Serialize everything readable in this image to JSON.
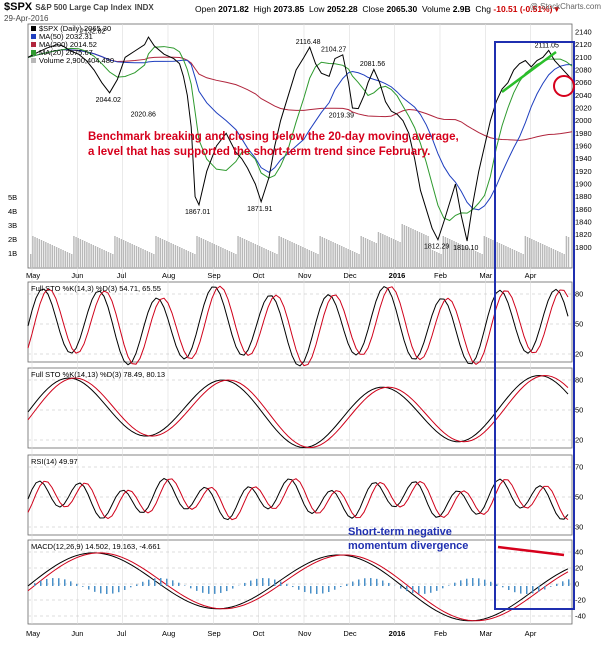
{
  "header": {
    "symbol": "$SPX",
    "name": "S&P 500 Large Cap Index",
    "exchange": "INDX",
    "date": "29-Apr-2016",
    "open_label": "Open",
    "open": "2071.82",
    "high_label": "High",
    "high": "2073.85",
    "low_label": "Low",
    "low": "2052.28",
    "close_label": "Close",
    "close": "2065.30",
    "volume_label": "Volume",
    "volume": "2.9B",
    "chg_label": "Chg",
    "chg": "-10.51 (-0.51%)",
    "watermark": "@ StockCharts.com"
  },
  "colors": {
    "price_up": "#000000",
    "price_down": "#d0021b",
    "ma50": "#1f3fbf",
    "ma200": "#b0243c",
    "ma20": "#2e9a2e",
    "volume": "#b8b8b8",
    "highlight_box": "#1f2fb0",
    "annotation": "#d6001c",
    "sto_k": "#000000",
    "sto_d": "#d0021b",
    "macd_hist": "#4a90c8"
  },
  "chart_data": [
    {
      "type": "line",
      "panel": "price",
      "legend": [
        {
          "label": "$SPX (Daily) 2065.30"
        },
        {
          "label": "MA(50) 2032.31"
        },
        {
          "label": "MA(200) 2014.52"
        },
        {
          "label": "MA(20) 2075.67"
        },
        {
          "label": "Volume 2,900,404,480"
        }
      ],
      "months": [
        "May",
        "Jun",
        "Jul",
        "Aug",
        "Sep",
        "Oct",
        "Nov",
        "Dec",
        "2016",
        "Feb",
        "Mar",
        "Apr"
      ],
      "ylim": [
        1780,
        2140
      ],
      "yticks": [
        "2140",
        "2120",
        "2100",
        "2080",
        "2060",
        "2040",
        "2020",
        "2000",
        "1980",
        "1960",
        "1940",
        "1920",
        "1900",
        "1880",
        "1860",
        "1840",
        "1820",
        "1800"
      ],
      "volume_ticks": [
        "5B",
        "4B",
        "3B",
        "2B",
        "1B"
      ],
      "series": [
        {
          "name": "$SPX",
          "x": [
            0,
            5,
            10,
            15,
            18,
            22,
            26,
            30,
            34,
            38,
            42,
            46,
            50,
            55,
            60,
            62,
            65,
            70,
            75,
            78,
            80,
            82,
            84,
            86,
            88,
            92,
            97,
            102,
            107,
            110,
            113,
            117,
            120,
            124,
            127,
            130,
            134,
            138,
            142,
            145,
            148,
            151,
            155,
            158,
            162,
            165,
            167,
            170,
            173,
            175,
            178,
            181,
            184,
            187,
            190,
            193,
            196,
            199,
            202,
            205,
            208,
            211,
            214,
            217,
            220,
            223,
            226,
            229,
            232,
            235,
            238,
            241,
            244,
            247,
            250
          ],
          "values": [
            2100,
            2108,
            2115,
            2120,
            2118,
            2110,
            2105,
            2095,
            2080,
            2060,
            2044,
            2065,
            2100,
            2110,
            2120,
            2132,
            2118,
            2105,
            2098,
            2090,
            2070,
            2040,
            1990,
            1880,
            1867,
            1920,
            1960,
            1980,
            1950,
            1940,
            1925,
            1900,
            1872,
            1910,
            1960,
            2000,
            2040,
            2080,
            2100,
            2116,
            2090,
            2075,
            2070,
            2098,
            2104,
            2060,
            2020,
            2019,
            2040,
            2060,
            2081,
            2060,
            2030,
            2015,
            2010,
            2000,
            1980,
            1940,
            1890,
            1860,
            1830,
            1812,
            1840,
            1870,
            1900,
            1850,
            1810,
            1870,
            1920,
            1960,
            2000,
            2030,
            2050,
            2060,
            2080
          ]
        },
        {
          "name": "$SPX (cont)",
          "x": [
            250,
            253,
            256,
            259,
            262,
            265,
            268,
            271,
            274,
            277,
            280
          ],
          "values": [
            2080,
            2090,
            2095,
            2085,
            2095,
            2100,
            2111,
            2095,
            2085,
            2075,
            2065
          ]
        }
      ]
    },
    {
      "type": "line",
      "panel": "full_sto_14_3",
      "label": "Full STO %K(14,3) %D(3) 54.71, 65.55",
      "yticks": [
        "80",
        "50",
        "20"
      ]
    },
    {
      "type": "line",
      "panel": "full_sto_14_13",
      "label": "Full STO %K(14,13) %D(3) 78.49, 80.13",
      "yticks": [
        "80",
        "50",
        "20"
      ]
    },
    {
      "type": "line",
      "panel": "rsi",
      "label": "RSI(14) 49.97",
      "yticks": [
        "70",
        "50",
        "30"
      ]
    },
    {
      "type": "line",
      "panel": "macd",
      "label": "MACD(12,26,9) 14.502, 19.163, -4.661",
      "yticks": [
        "40",
        "20",
        "0",
        "-20",
        "-40"
      ]
    }
  ],
  "price_marks": [
    {
      "text": "2132.82"
    },
    {
      "text": "2044.02"
    },
    {
      "text": "2020.86"
    },
    {
      "text": "1867.01"
    },
    {
      "text": "1871.91"
    },
    {
      "text": "2116.48"
    },
    {
      "text": "2019.39"
    },
    {
      "text": "2104.27"
    },
    {
      "text": "2081.56"
    },
    {
      "text": "1812.29"
    },
    {
      "text": "1810.10"
    },
    {
      "text": "2111.05"
    }
  ],
  "annotations": {
    "main_line1": "Benchmark breaking and closing below the 20-day moving average,",
    "main_line2": "a level that has supported the short-term trend since February.",
    "macd_line1": "Short-term negative",
    "macd_line2": "momentum divergence"
  }
}
